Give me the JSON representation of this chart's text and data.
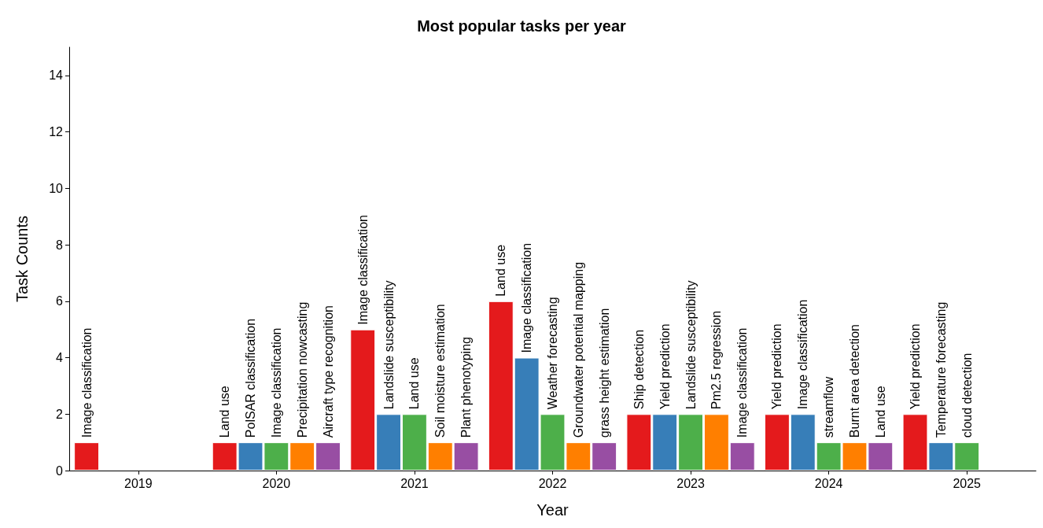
{
  "chart_data": {
    "type": "bar",
    "title": "Most popular tasks per year",
    "xlabel": "Year",
    "ylabel": "Task Counts",
    "categories": [
      "2019",
      "2020",
      "2021",
      "2022",
      "2023",
      "2024",
      "2025"
    ],
    "series": [
      {
        "color": "#e41a1c",
        "values": [
          1,
          1,
          5,
          6,
          2,
          2,
          2
        ],
        "value_labels": [
          "Image classification",
          "Land use",
          "Image classification",
          "Land use",
          "Ship detection",
          "Yield prediction",
          "Yield prediction"
        ]
      },
      {
        "color": "#377eb8",
        "values": [
          null,
          1,
          2,
          4,
          2,
          2,
          1
        ],
        "value_labels": [
          null,
          "PolSAR classification",
          "Landslide susceptibility",
          "Image classification",
          "Yield prediction",
          "Image classification",
          "Temperature forecasting"
        ]
      },
      {
        "color": "#4daf4a",
        "values": [
          null,
          1,
          2,
          2,
          2,
          1,
          1
        ],
        "value_labels": [
          null,
          "Image classification",
          "Land use",
          "Weather forecasting",
          "Landslide susceptibility",
          "streamflow",
          "cloud detection"
        ]
      },
      {
        "color": "#ff7f00",
        "values": [
          null,
          1,
          1,
          1,
          2,
          1,
          null
        ],
        "value_labels": [
          null,
          "Precipitation nowcasting",
          "Soil moisture estimation",
          "Groundwater potential mapping",
          "Pm2.5 regression",
          "Burnt area detection",
          null
        ]
      },
      {
        "color": "#984ea3",
        "values": [
          null,
          1,
          1,
          1,
          1,
          1,
          null
        ],
        "value_labels": [
          null,
          "Aircraft type recognition",
          "Plant phenotyping",
          "grass height estimation",
          "Image classification",
          "Land use",
          null
        ]
      }
    ],
    "ylim": [
      0,
      15
    ],
    "yticks": [
      0,
      2,
      4,
      6,
      8,
      10,
      12,
      14
    ]
  }
}
